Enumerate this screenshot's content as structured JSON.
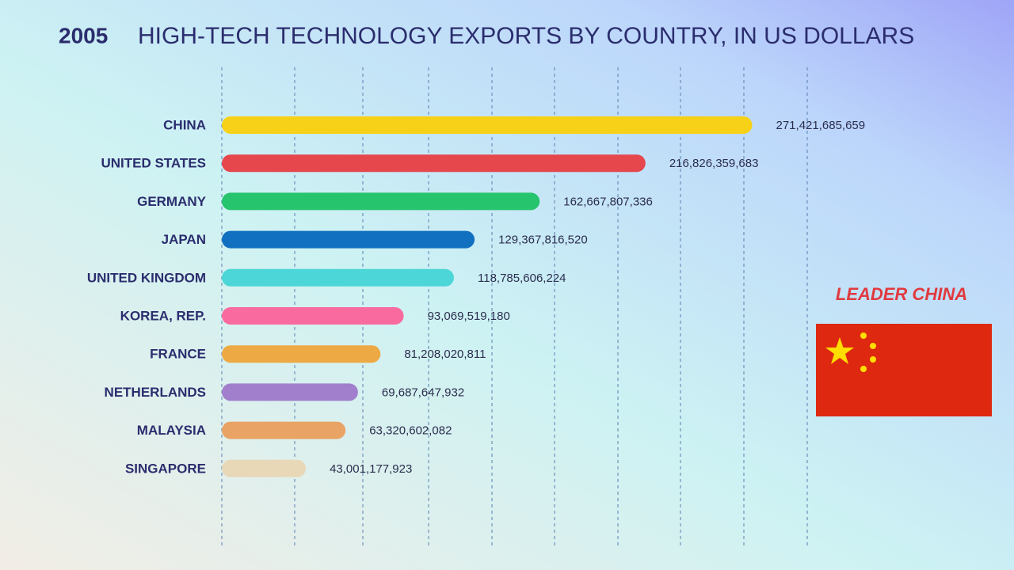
{
  "chart_data": {
    "type": "bar",
    "orientation": "horizontal",
    "year": "2005",
    "title": "HIGH-TECH TECHNOLOGY EXPORTS BY COUNTRY, IN US DOLLARS",
    "annotation": "LEADER CHINA",
    "categories": [
      "CHINA",
      "UNITED STATES",
      "GERMANY",
      "JAPAN",
      "UNITED KINGDOM",
      "KOREA, REP.",
      "FRANCE",
      "NETHERLANDS",
      "MALAYSIA",
      "SINGAPORE"
    ],
    "values": [
      271421685659,
      216826359683,
      162667807336,
      129367816520,
      118785606224,
      93069519180,
      81208020811,
      69687647932,
      63320602082,
      43001177923
    ],
    "value_labels": [
      "271,421,685,659",
      "216,826,359,683",
      "162,667,807,336",
      "129,367,816,520",
      "118,785,606,224",
      "93,069,519,180",
      "81,208,020,811",
      "69,687,647,932",
      "63,320,602,082",
      "43,001,177,923"
    ],
    "colors": [
      "#f7d117",
      "#e5474d",
      "#27c46e",
      "#1170bf",
      "#4dd6d8",
      "#f96b9f",
      "#eda944",
      "#a17fcc",
      "#e9a364",
      "#e8d8b8"
    ],
    "xlim": [
      0,
      300000000000
    ]
  }
}
